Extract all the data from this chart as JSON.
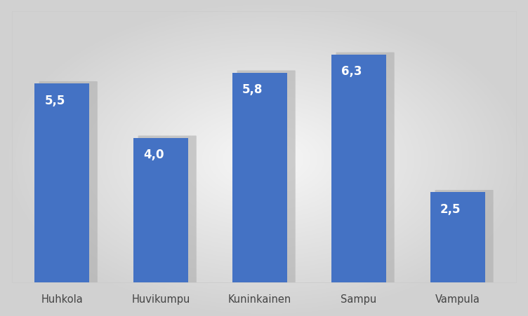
{
  "categories": [
    "Huhkola",
    "Huvikumpu",
    "Kuninkainen",
    "Sampu",
    "Vampula"
  ],
  "values": [
    5.5,
    4.0,
    5.8,
    6.3,
    2.5
  ],
  "bar_color": "#4472C4",
  "bar_labels": [
    "5,5",
    "4,0",
    "5,8",
    "6,3",
    "2,5"
  ],
  "label_color": "#ffffff",
  "label_fontsize": 12,
  "tick_fontsize": 10.5,
  "background_color": "#f5f5f5",
  "plot_bg_color": "#f0f0f0",
  "ylim": [
    0,
    7.5
  ],
  "bar_width": 0.55,
  "shadow_color": "#aaaaaa",
  "shadow_alpha": 0.55
}
